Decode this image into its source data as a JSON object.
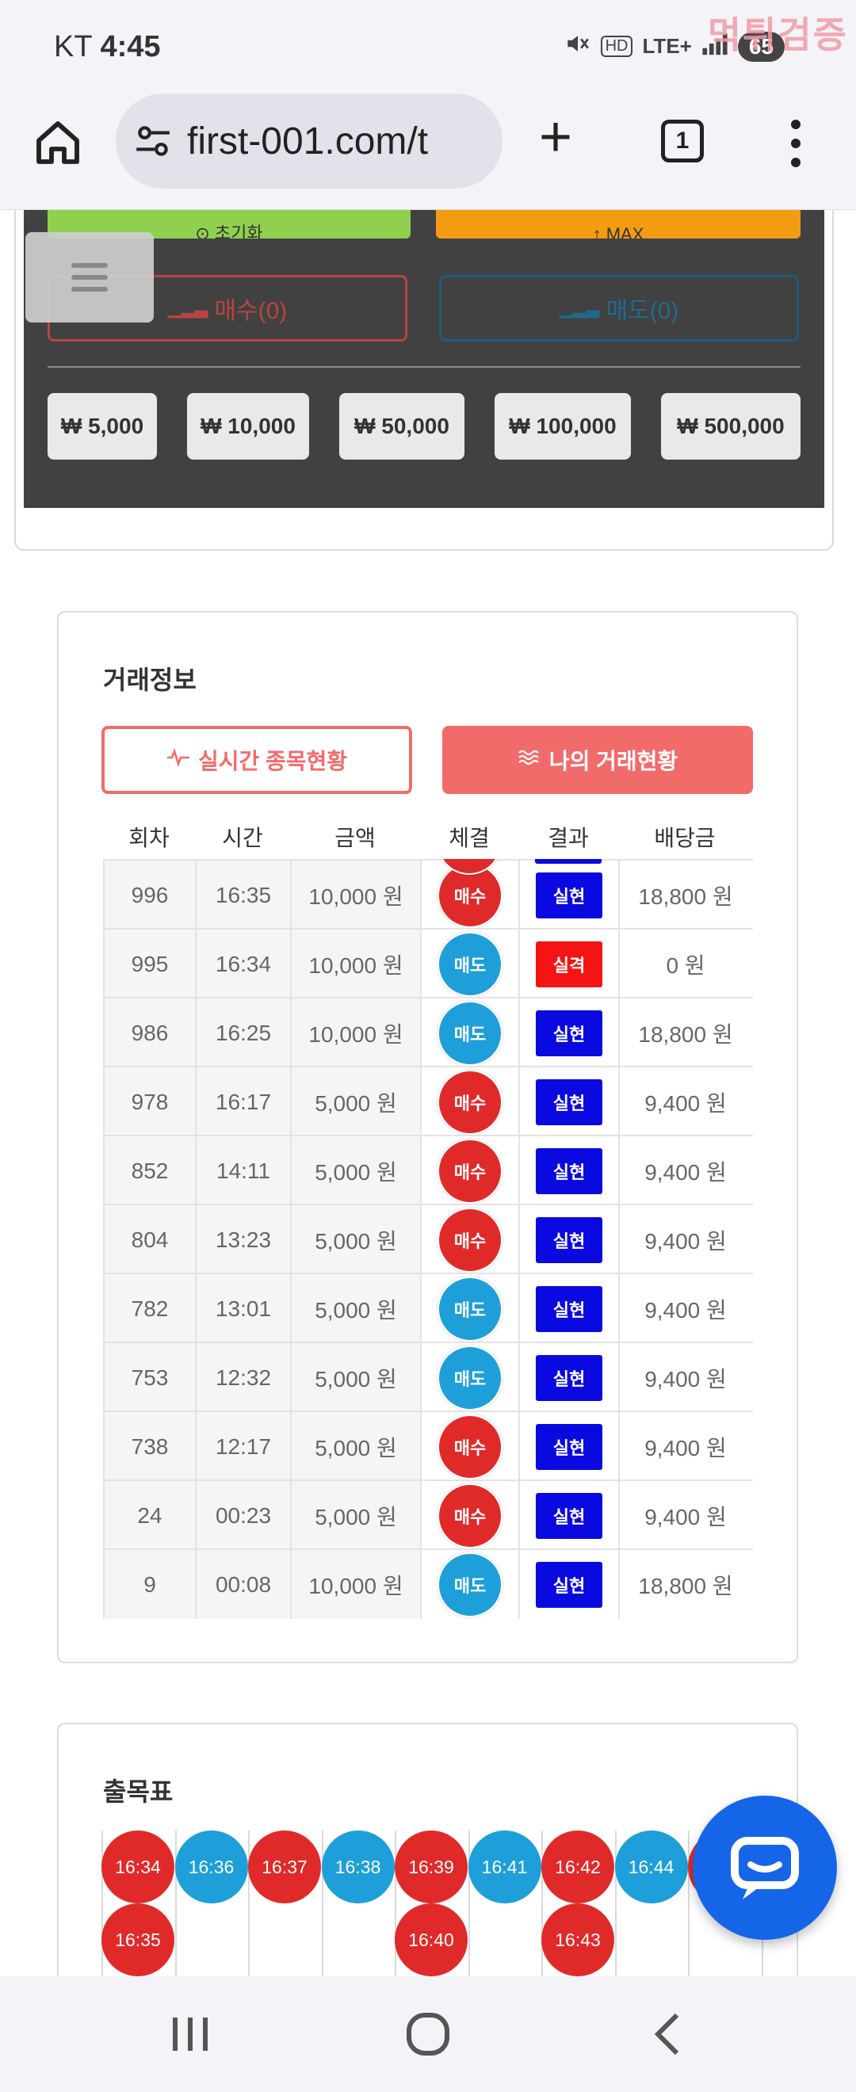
{
  "status_bar": {
    "carrier": "KT",
    "time": "4:45",
    "network": "LTE+",
    "hd": "HD",
    "battery": "65",
    "watermark": "먹튀검증"
  },
  "browser": {
    "url": "first-001.com/t",
    "tab_count": "1"
  },
  "trade_panel": {
    "reset_label": "⊙ 초기화",
    "max_label": "↑ MAX",
    "buy_label": "매수(0)",
    "sell_label": "매도(0)",
    "amounts": [
      "₩ 5,000",
      "₩ 10,000",
      "₩ 50,000",
      "₩ 100,000",
      "₩ 500,000"
    ]
  },
  "trade_info": {
    "title": "거래정보",
    "tab_live": "실시간 종목현황",
    "tab_mine": "나의 거래현황",
    "headers": [
      "회차",
      "시간",
      "금액",
      "체결",
      "결과",
      "배당금"
    ],
    "rows": [
      {
        "round": "996",
        "time": "16:35",
        "amount": "10,000 원",
        "side": "매수",
        "result": "실현",
        "payout": "18,800 원"
      },
      {
        "round": "995",
        "time": "16:34",
        "amount": "10,000 원",
        "side": "매도",
        "result": "실격",
        "payout": "0 원"
      },
      {
        "round": "986",
        "time": "16:25",
        "amount": "10,000 원",
        "side": "매도",
        "result": "실현",
        "payout": "18,800 원"
      },
      {
        "round": "978",
        "time": "16:17",
        "amount": "5,000 원",
        "side": "매수",
        "result": "실현",
        "payout": "9,400 원"
      },
      {
        "round": "852",
        "time": "14:11",
        "amount": "5,000 원",
        "side": "매수",
        "result": "실현",
        "payout": "9,400 원"
      },
      {
        "round": "804",
        "time": "13:23",
        "amount": "5,000 원",
        "side": "매수",
        "result": "실현",
        "payout": "9,400 원"
      },
      {
        "round": "782",
        "time": "13:01",
        "amount": "5,000 원",
        "side": "매도",
        "result": "실현",
        "payout": "9,400 원"
      },
      {
        "round": "753",
        "time": "12:32",
        "amount": "5,000 원",
        "side": "매도",
        "result": "실현",
        "payout": "9,400 원"
      },
      {
        "round": "738",
        "time": "12:17",
        "amount": "5,000 원",
        "side": "매수",
        "result": "실현",
        "payout": "9,400 원"
      },
      {
        "round": "24",
        "time": "00:23",
        "amount": "5,000 원",
        "side": "매수",
        "result": "실현",
        "payout": "9,400 원"
      },
      {
        "round": "9",
        "time": "00:08",
        "amount": "10,000 원",
        "side": "매도",
        "result": "실현",
        "payout": "18,800 원"
      }
    ]
  },
  "result_board": {
    "title": "출목표",
    "top_row": [
      {
        "time": "16:34",
        "side": "buy"
      },
      {
        "time": "16:36",
        "side": "sell"
      },
      {
        "time": "16:37",
        "side": "buy"
      },
      {
        "time": "16:38",
        "side": "sell"
      },
      {
        "time": "16:39",
        "side": "buy"
      },
      {
        "time": "16:41",
        "side": "sell"
      },
      {
        "time": "16:42",
        "side": "buy"
      },
      {
        "time": "16:44",
        "side": "sell"
      }
    ],
    "bottom_row": [
      {
        "col": 0,
        "time": "16:35",
        "side": "buy"
      },
      {
        "col": 4,
        "time": "16:40",
        "side": "buy"
      },
      {
        "col": 6,
        "time": "16:43",
        "side": "buy"
      }
    ]
  },
  "colors": {
    "buy": "#e02a2a",
    "sell": "#1e9fd9",
    "realized": "#0a0ae0",
    "disqualified": "#f41414",
    "accent": "#f26b6b",
    "chat": "#1565e8"
  }
}
